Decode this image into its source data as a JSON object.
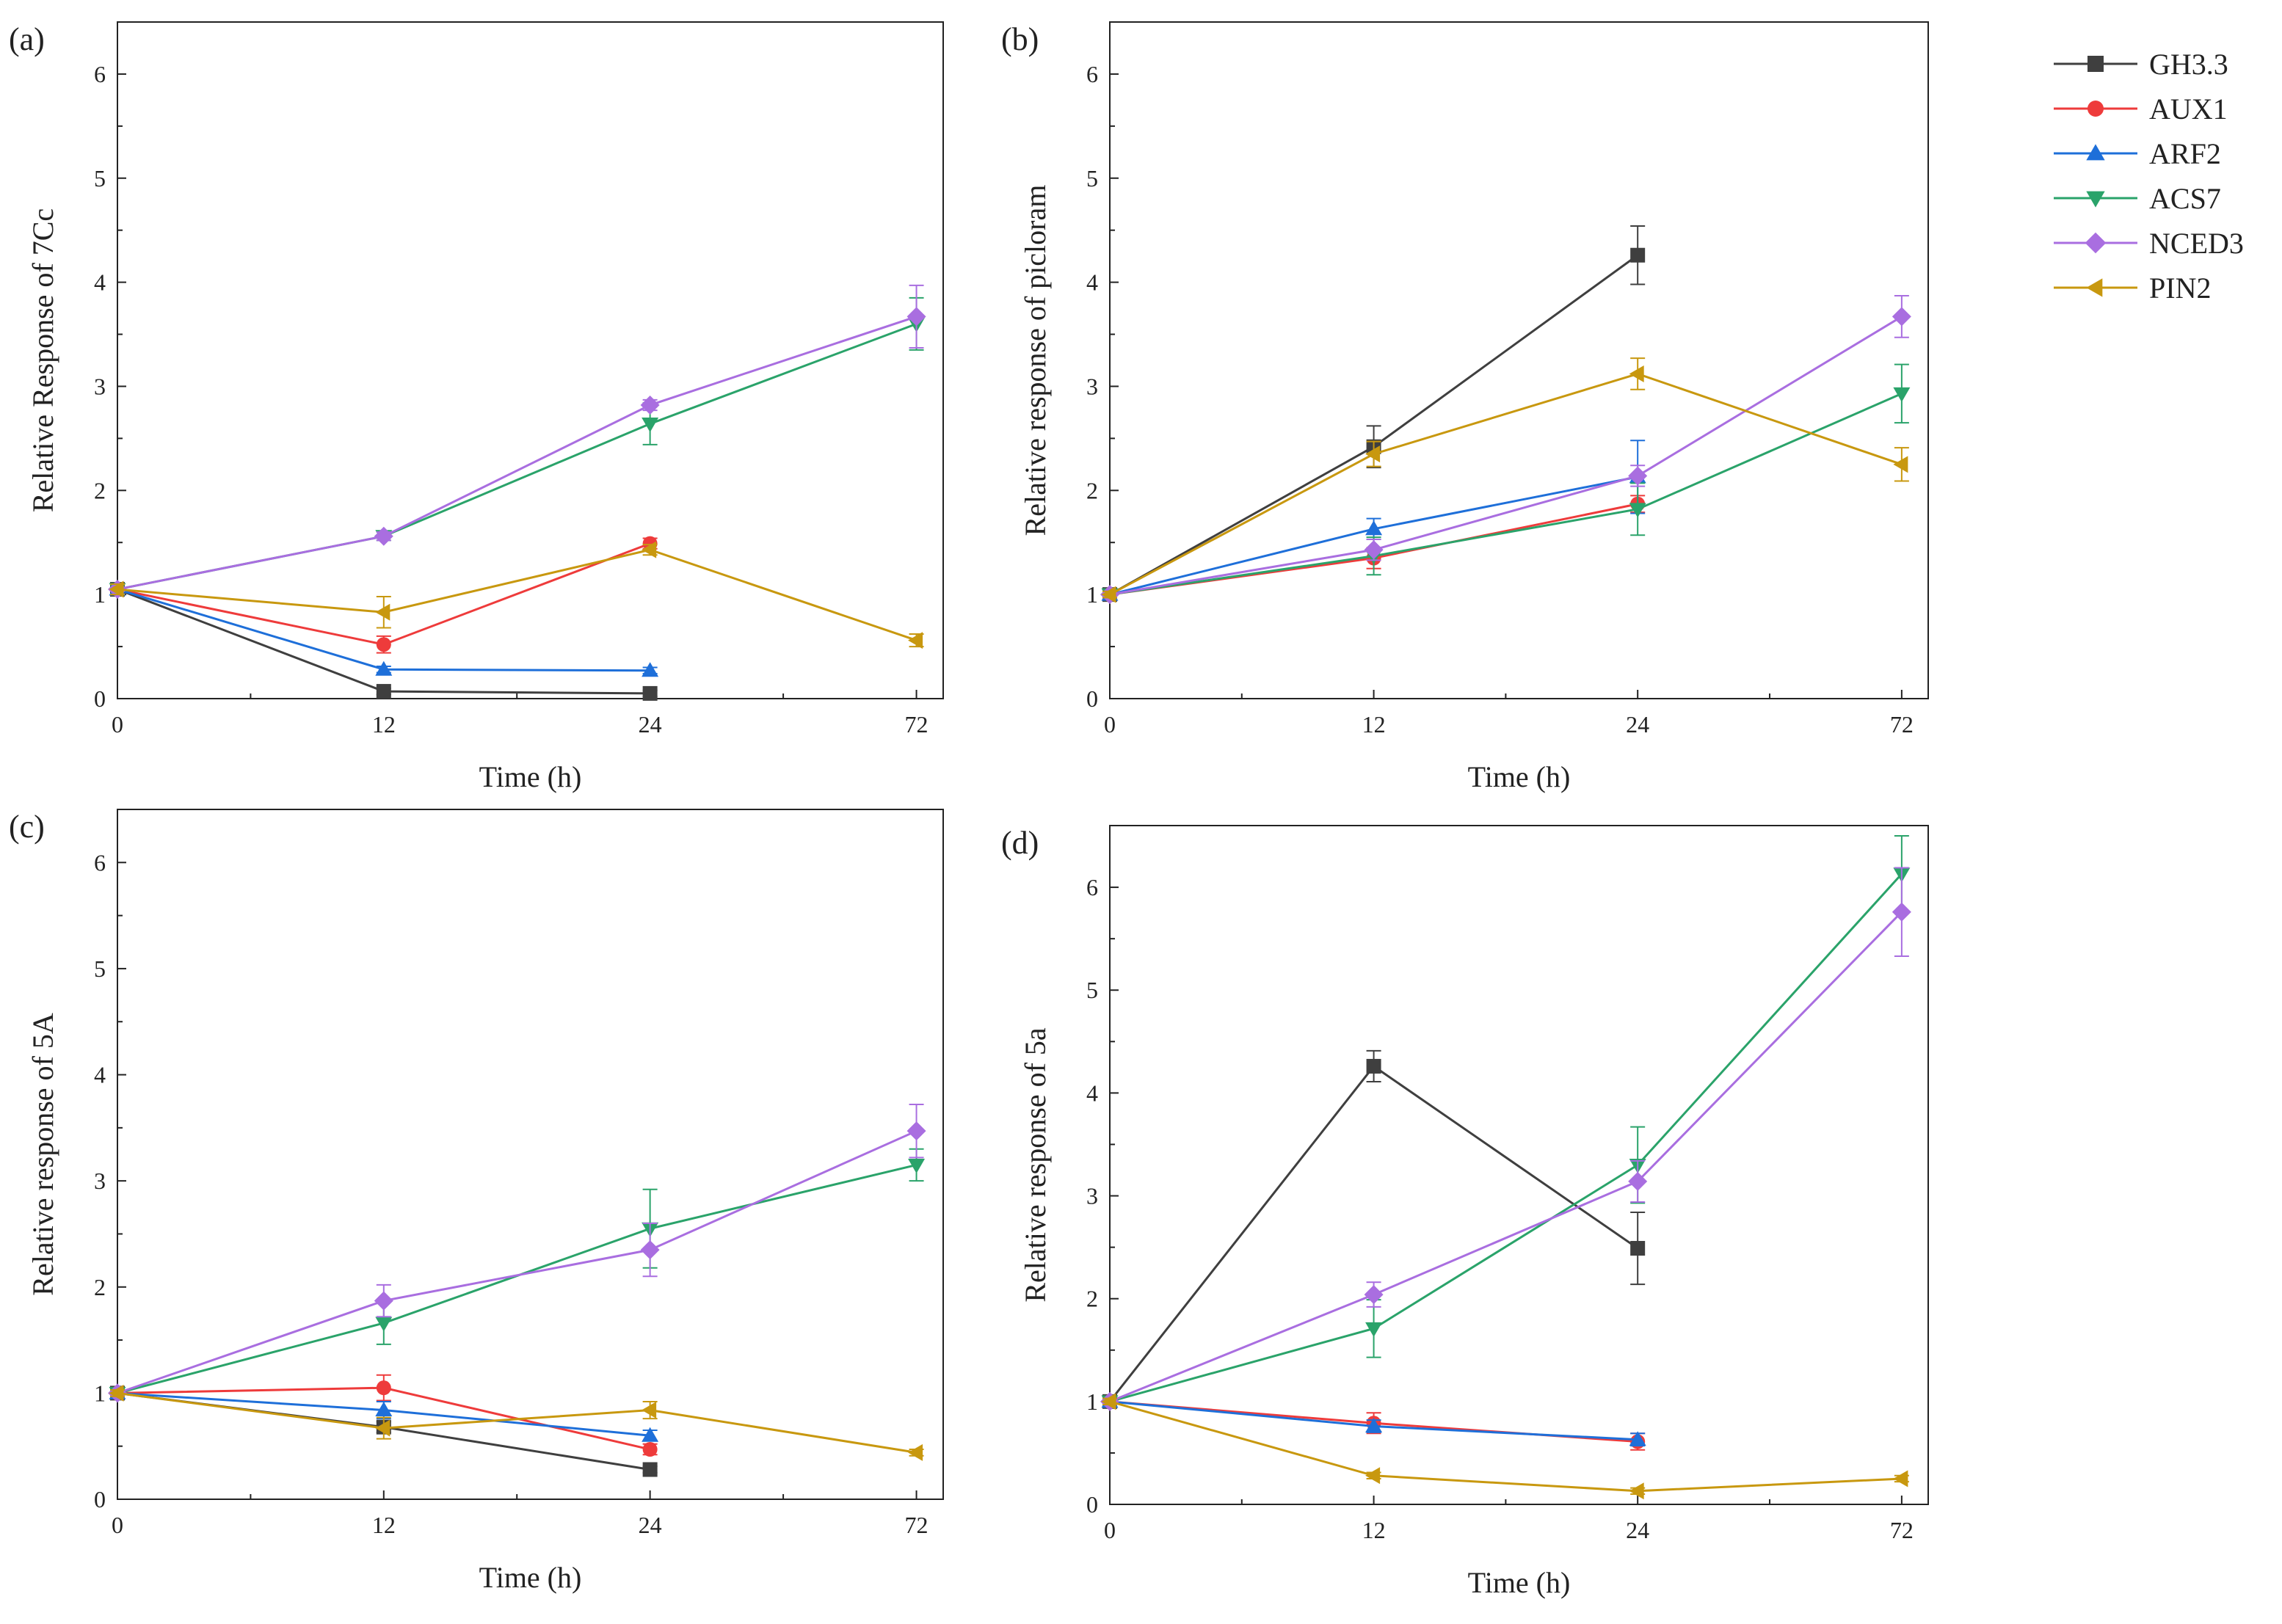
{
  "chart_data": [
    {
      "type": "line",
      "panel_label": "(a)",
      "xlabel": "Time (h)",
      "ylabel": "Relative Response of 7Cc",
      "categories": [
        "0",
        "12",
        "24",
        "72"
      ],
      "ylim": [
        0,
        6.5
      ],
      "yticks": [
        0,
        1,
        2,
        3,
        4,
        5,
        6
      ],
      "series": [
        {
          "name": "GH3.3",
          "values": [
            1.05,
            0.07,
            0.05,
            null
          ],
          "errors": [
            0.05,
            0.03,
            0.03,
            null
          ]
        },
        {
          "name": "AUX1",
          "values": [
            1.05,
            0.52,
            1.49,
            null
          ],
          "errors": [
            0.05,
            0.08,
            0.05,
            null
          ]
        },
        {
          "name": "ARF2",
          "values": [
            1.05,
            0.28,
            0.27,
            null
          ],
          "errors": [
            0.05,
            0.03,
            0.03,
            null
          ]
        },
        {
          "name": "ACS7",
          "values": [
            1.05,
            1.56,
            2.64,
            3.6
          ],
          "errors": [
            0.05,
            0.04,
            0.2,
            0.25
          ]
        },
        {
          "name": "NCED3",
          "values": [
            1.05,
            1.56,
            2.82,
            3.67
          ],
          "errors": [
            0.05,
            0.04,
            0.05,
            0.3
          ]
        },
        {
          "name": "PIN2",
          "values": [
            1.05,
            0.83,
            1.43,
            0.56
          ],
          "errors": [
            0.05,
            0.15,
            0.05,
            0.06
          ]
        }
      ]
    },
    {
      "type": "line",
      "panel_label": "(b)",
      "xlabel": "Time (h)",
      "ylabel": "Relative response of picloram",
      "categories": [
        "0",
        "12",
        "24",
        "72"
      ],
      "ylim": [
        0,
        6.5
      ],
      "yticks": [
        0,
        1,
        2,
        3,
        4,
        5,
        6
      ],
      "series": [
        {
          "name": "GH3.3",
          "values": [
            1.0,
            2.42,
            4.26,
            null
          ],
          "errors": [
            0.03,
            0.2,
            0.28,
            null
          ]
        },
        {
          "name": "AUX1",
          "values": [
            1.0,
            1.35,
            1.87,
            null
          ],
          "errors": [
            0.03,
            0.1,
            0.08,
            null
          ]
        },
        {
          "name": "ARF2",
          "values": [
            1.0,
            1.63,
            2.13,
            null
          ],
          "errors": [
            0.03,
            0.1,
            0.35,
            null
          ]
        },
        {
          "name": "ACS7",
          "values": [
            1.0,
            1.37,
            1.82,
            2.93
          ],
          "errors": [
            0.03,
            0.18,
            0.25,
            0.28
          ]
        },
        {
          "name": "NCED3",
          "values": [
            1.0,
            1.43,
            2.14,
            3.67
          ],
          "errors": [
            0.03,
            0.1,
            0.1,
            0.2
          ]
        },
        {
          "name": "PIN2",
          "values": [
            1.0,
            2.35,
            3.12,
            2.25
          ],
          "errors": [
            0.03,
            0.12,
            0.15,
            0.16
          ]
        }
      ]
    },
    {
      "type": "line",
      "panel_label": "(c)",
      "xlabel": "Time (h)",
      "ylabel": "Relative response of 5A",
      "categories": [
        "0",
        "12",
        "24",
        "72"
      ],
      "ylim": [
        0,
        6.5
      ],
      "yticks": [
        0,
        1,
        2,
        3,
        4,
        5,
        6
      ],
      "series": [
        {
          "name": "GH3.3",
          "values": [
            1.0,
            0.68,
            0.28,
            null
          ],
          "errors": [
            0.03,
            0.05,
            0.03,
            null
          ]
        },
        {
          "name": "AUX1",
          "values": [
            1.0,
            1.05,
            0.47,
            null
          ],
          "errors": [
            0.03,
            0.12,
            0.05,
            null
          ]
        },
        {
          "name": "ARF2",
          "values": [
            1.0,
            0.84,
            0.6,
            null
          ],
          "errors": [
            0.03,
            0.08,
            0.05,
            null
          ]
        },
        {
          "name": "ACS7",
          "values": [
            1.0,
            1.66,
            2.55,
            3.15
          ],
          "errors": [
            0.03,
            0.2,
            0.37,
            0.15
          ]
        },
        {
          "name": "NCED3",
          "values": [
            1.0,
            1.87,
            2.35,
            3.47
          ],
          "errors": [
            0.03,
            0.15,
            0.25,
            0.25
          ]
        },
        {
          "name": "PIN2",
          "values": [
            1.0,
            0.67,
            0.84,
            0.44
          ],
          "errors": [
            0.03,
            0.1,
            0.08,
            0.03
          ]
        }
      ]
    },
    {
      "type": "line",
      "panel_label": "(d)",
      "xlabel": "Time (h)",
      "ylabel": "Relative response of 5a",
      "categories": [
        "0",
        "12",
        "24",
        "72"
      ],
      "ylim": [
        0,
        6.6
      ],
      "yticks": [
        0,
        1,
        2,
        3,
        4,
        5,
        6
      ],
      "series": [
        {
          "name": "GH3.3",
          "values": [
            1.0,
            4.26,
            2.49,
            null
          ],
          "errors": [
            0.03,
            0.15,
            0.35,
            null
          ]
        },
        {
          "name": "AUX1",
          "values": [
            1.0,
            0.79,
            0.61,
            null
          ],
          "errors": [
            0.03,
            0.1,
            0.08,
            null
          ]
        },
        {
          "name": "ARF2",
          "values": [
            1.0,
            0.76,
            0.63,
            null
          ],
          "errors": [
            0.03,
            0.06,
            0.06,
            null
          ]
        },
        {
          "name": "ACS7",
          "values": [
            1.0,
            1.71,
            3.3,
            6.13
          ],
          "errors": [
            0.03,
            0.28,
            0.37,
            0.37
          ]
        },
        {
          "name": "NCED3",
          "values": [
            1.0,
            2.04,
            3.14,
            5.76
          ],
          "errors": [
            0.03,
            0.12,
            0.2,
            0.43
          ]
        },
        {
          "name": "PIN2",
          "values": [
            1.0,
            0.28,
            0.13,
            0.25
          ],
          "errors": [
            0.03,
            0.03,
            0.03,
            0.03
          ]
        }
      ]
    }
  ],
  "legend": {
    "entries": [
      {
        "name": "GH3.3",
        "color": "#3f3f3f",
        "marker": "square"
      },
      {
        "name": "AUX1",
        "color": "#ee3b3b",
        "marker": "circle"
      },
      {
        "name": "ARF2",
        "color": "#1e6fd9",
        "marker": "triangle-up"
      },
      {
        "name": "ACS7",
        "color": "#2aa36a",
        "marker": "triangle-down"
      },
      {
        "name": "NCED3",
        "color": "#a96ee0",
        "marker": "diamond"
      },
      {
        "name": "PIN2",
        "color": "#c8980f",
        "marker": "triangle-left"
      }
    ]
  }
}
